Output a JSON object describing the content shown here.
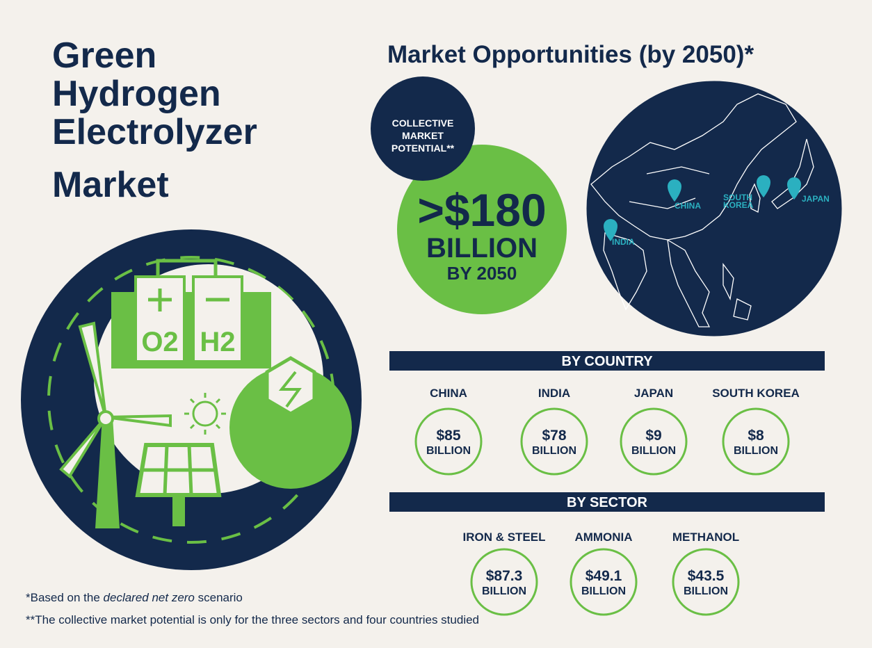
{
  "title": [
    "Green",
    "Hydrogen",
    "Electrolyzer",
    "Market"
  ],
  "heading": "Market Opportunities (by 2050)*",
  "badge": {
    "lines": [
      "COLLECTIVE",
      "MARKET",
      "POTENTIAL**"
    ]
  },
  "total": {
    "amount": ">$180",
    "unit": "BILLION",
    "year": "BY 2050"
  },
  "illustration": {
    "oxygen": "O2",
    "hydrogen": "H2"
  },
  "map": {
    "labels": [
      "CHINA",
      "INDIA",
      "SOUTH",
      "KOREA",
      "JAPAN"
    ]
  },
  "by_country": {
    "header": "BY COUNTRY",
    "items": [
      {
        "name": "CHINA",
        "amount": "$85",
        "unit": "BILLION"
      },
      {
        "name": "INDIA",
        "amount": "$78",
        "unit": "BILLION"
      },
      {
        "name": "JAPAN",
        "amount": "$9",
        "unit": "BILLION"
      },
      {
        "name": "SOUTH KOREA",
        "amount": "$8",
        "unit": "BILLION"
      }
    ]
  },
  "by_sector": {
    "header": "BY SECTOR",
    "items": [
      {
        "name": "IRON & STEEL",
        "amount": "$87.3",
        "unit": "BILLION"
      },
      {
        "name": "AMMONIA",
        "amount": "$49.1",
        "unit": "BILLION"
      },
      {
        "name": "METHANOL",
        "amount": "$43.5",
        "unit": "BILLION"
      }
    ]
  },
  "footnotes": [
    {
      "parts": [
        "*Based on the ",
        "declared net zero",
        " scenario"
      ]
    },
    {
      "parts": [
        "**The collective market potential is only for the three sectors and four countries studied"
      ]
    }
  ]
}
